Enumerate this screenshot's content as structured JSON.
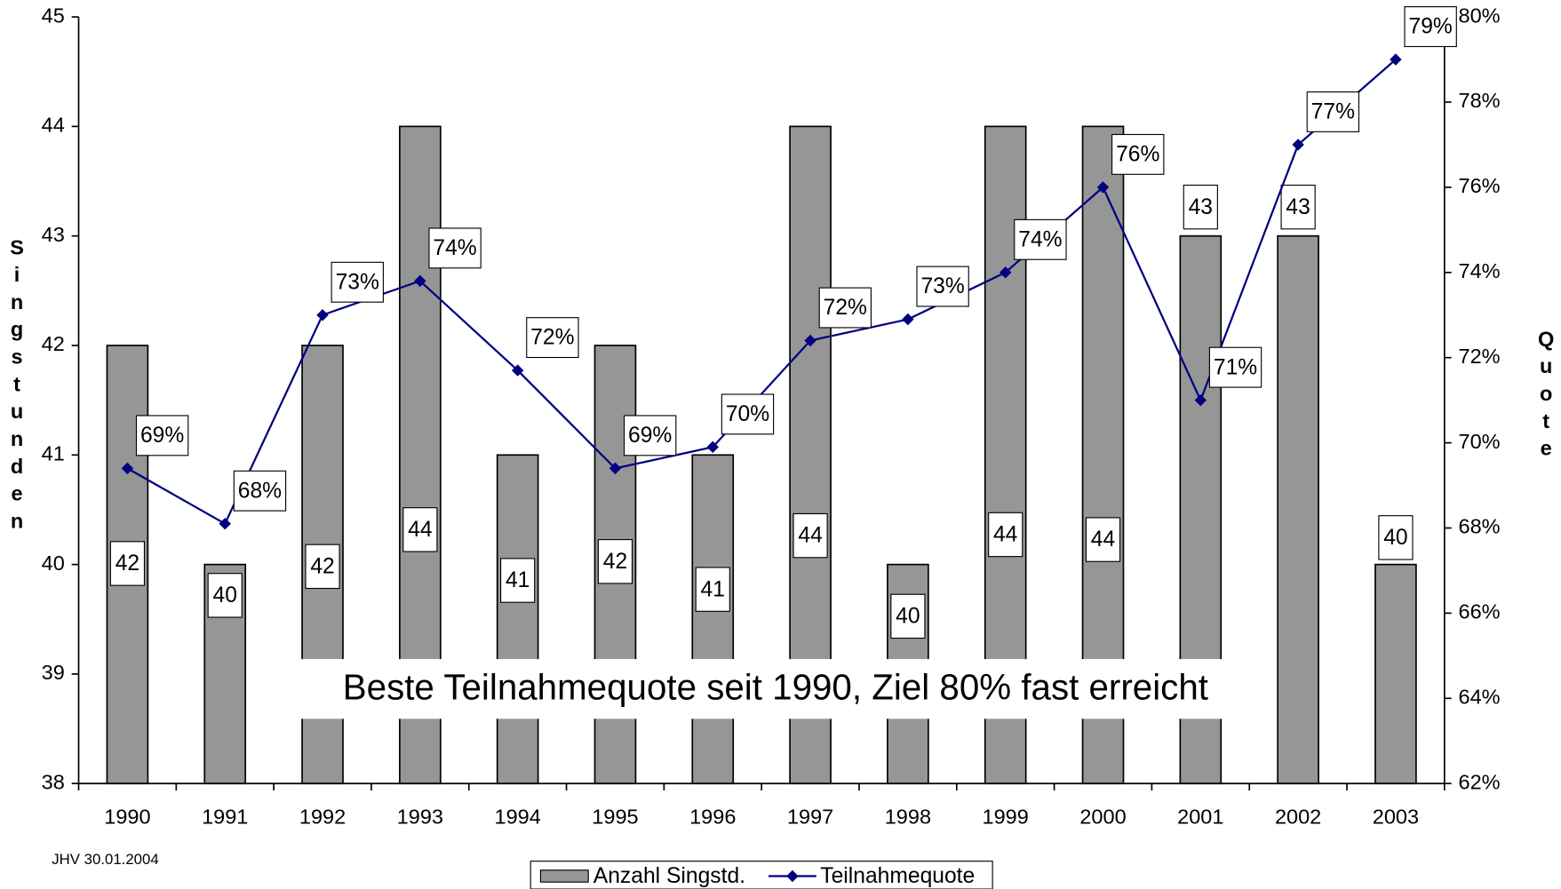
{
  "chart_data": {
    "type": "bar_line",
    "categories": [
      "1990",
      "1991",
      "1992",
      "1993",
      "1994",
      "1995",
      "1996",
      "1997",
      "1998",
      "1999",
      "2000",
      "2001",
      "2002",
      "2003"
    ],
    "series": [
      {
        "name": "Anzahl Singstd.",
        "type": "bar",
        "color": "#969696",
        "values": [
          42,
          40,
          42,
          44,
          41,
          42,
          41,
          44,
          40,
          44,
          44,
          43,
          43,
          40
        ]
      },
      {
        "name": "Teilnahmequote",
        "type": "line",
        "axis": "y2",
        "color": "#000080",
        "values": [
          69.4,
          68.1,
          73.0,
          73.8,
          71.7,
          69.4,
          69.9,
          72.4,
          72.9,
          74.0,
          76.0,
          71.0,
          77.0,
          79.0
        ],
        "value_labels": [
          "69%",
          "68%",
          "73%",
          "74%",
          "72%",
          "69%",
          "70%",
          "72%",
          "73%",
          "74%",
          "76%",
          "71%",
          "77%",
          "79%"
        ]
      }
    ],
    "ylabel": "Singstunden",
    "y2label": "Quote",
    "ylim": [
      38,
      45
    ],
    "yticks": [
      38,
      39,
      40,
      41,
      42,
      43,
      44,
      45
    ],
    "y2lim": [
      62,
      80
    ],
    "y2ticks": [
      {
        "value": 62,
        "label": "62%"
      },
      {
        "value": 64,
        "label": "64%"
      },
      {
        "value": 66,
        "label": "66%"
      },
      {
        "value": 68,
        "label": "68%"
      },
      {
        "value": 70,
        "label": "70%"
      },
      {
        "value": 72,
        "label": "72%"
      },
      {
        "value": 74,
        "label": "74%"
      },
      {
        "value": 76,
        "label": "76%"
      },
      {
        "value": 78,
        "label": "78%"
      },
      {
        "value": 80,
        "label": "80%"
      }
    ],
    "annotation": "Beste Teilnahmequote seit 1990, Ziel 80% fast erreicht",
    "footnote": "JHV 30.01.2004",
    "legend": "bottom"
  }
}
